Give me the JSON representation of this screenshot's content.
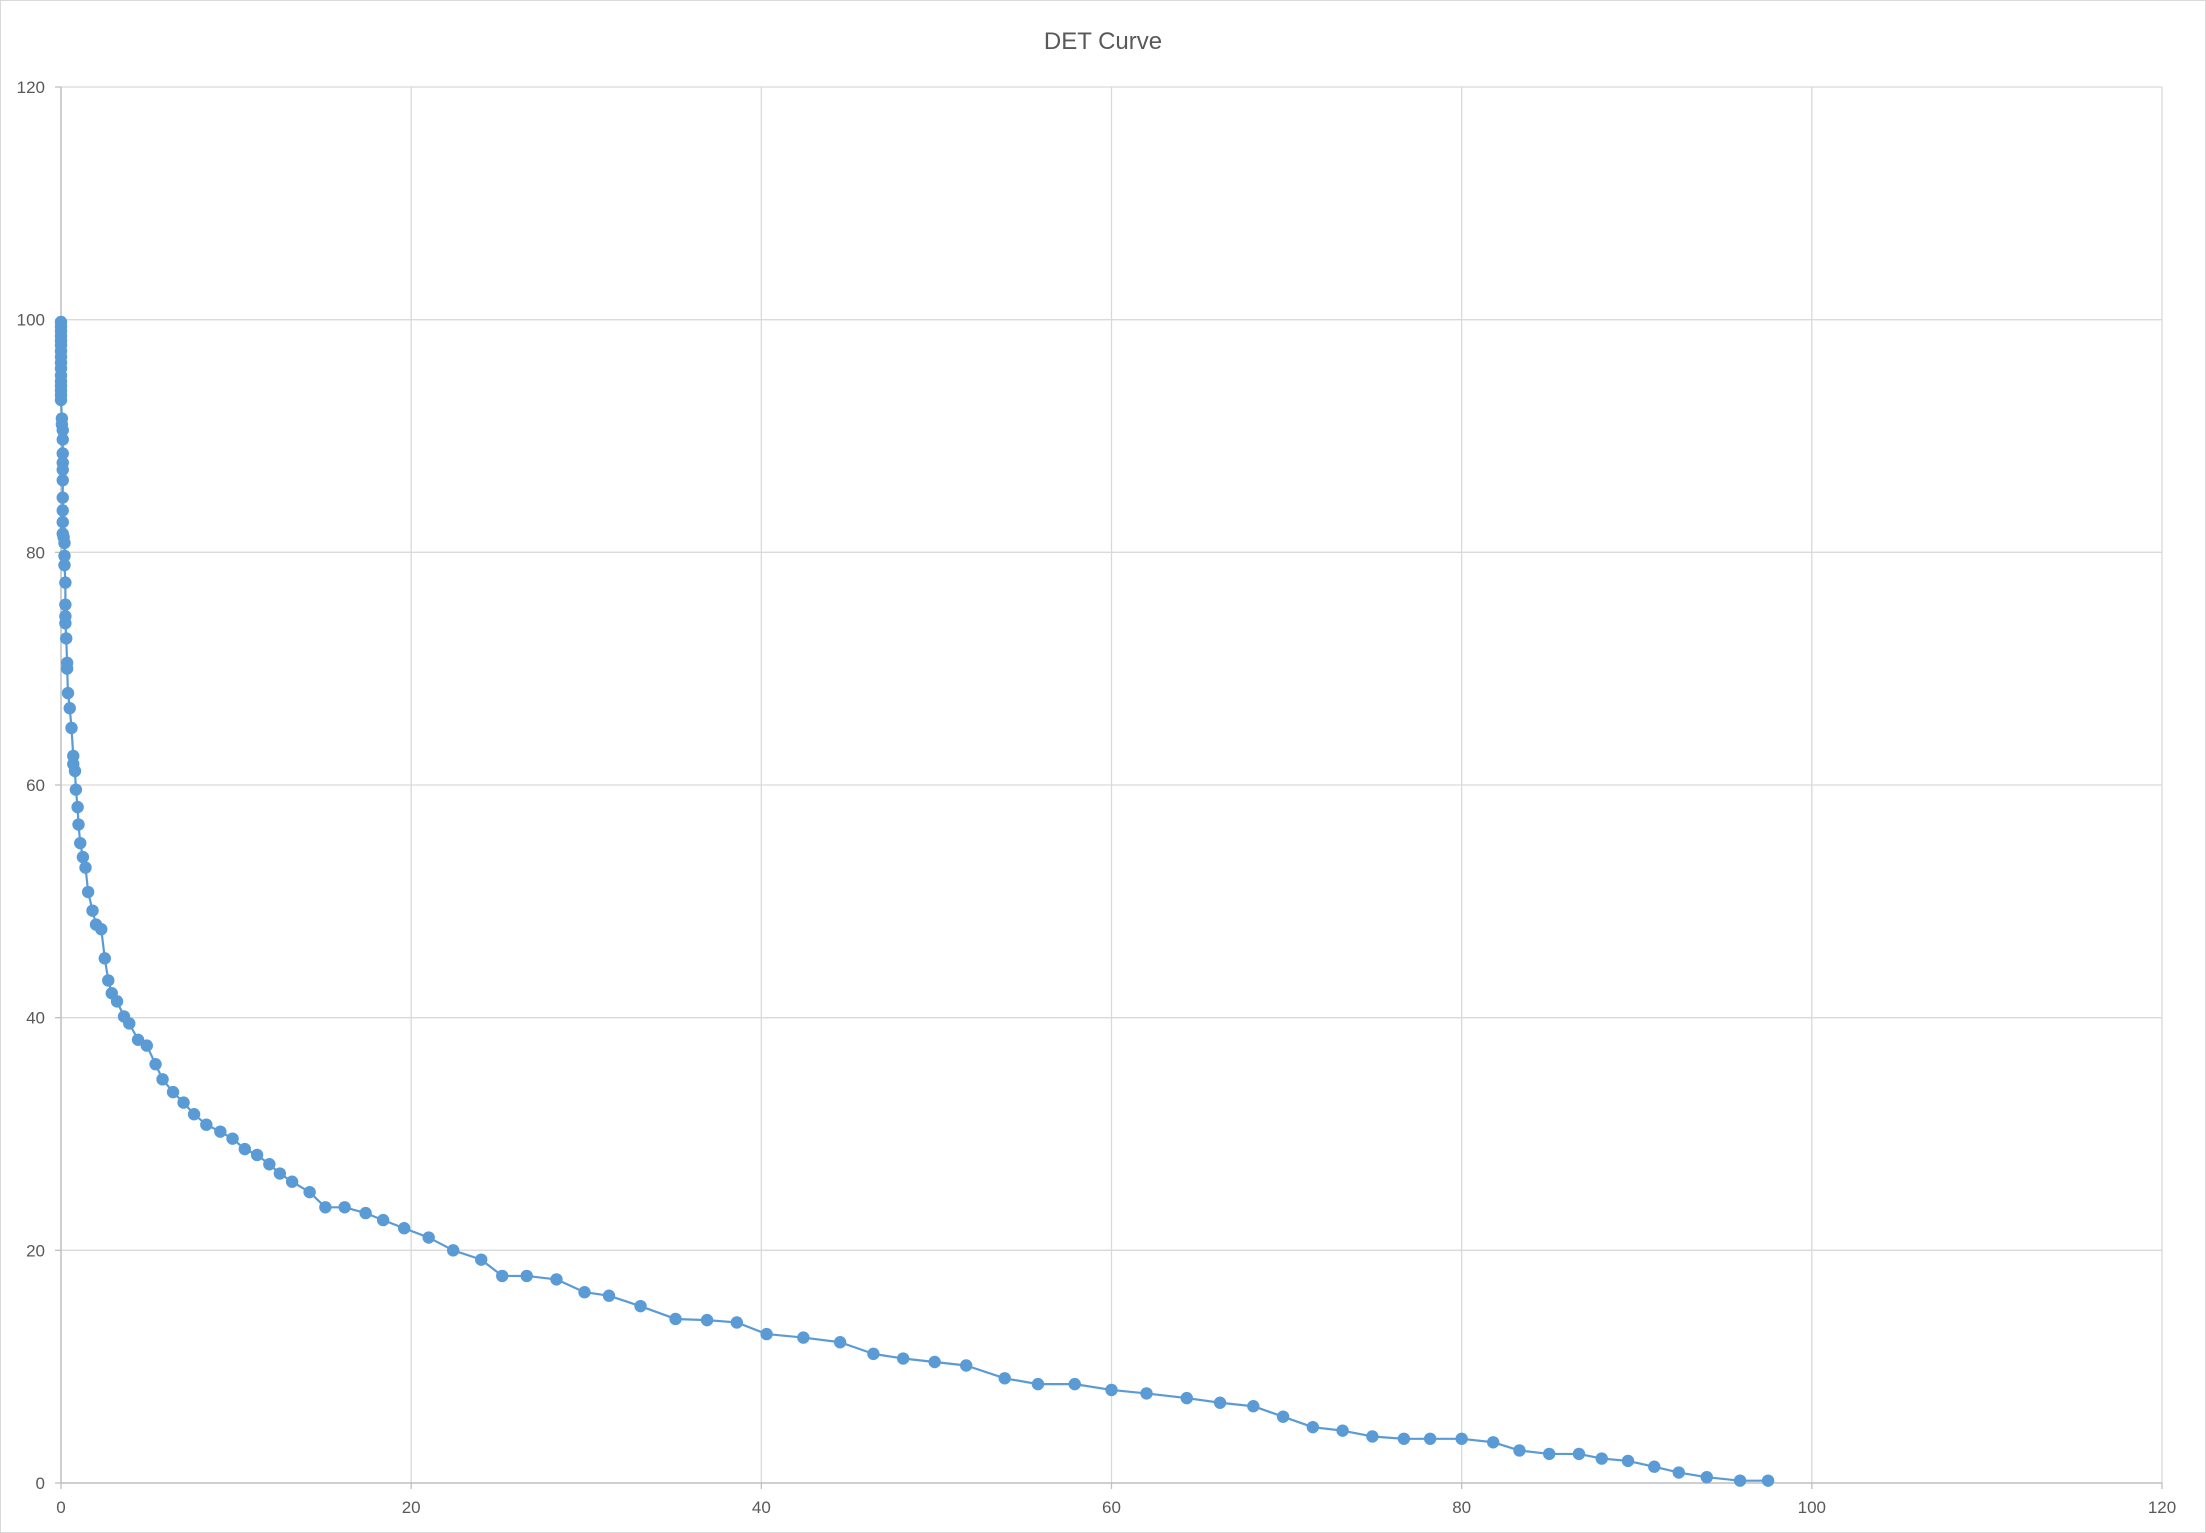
{
  "chart_data": {
    "type": "scatter",
    "title": "DET Curve",
    "xlabel": "",
    "ylabel": "",
    "xlim": [
      0,
      120
    ],
    "ylim": [
      0,
      120
    ],
    "x_ticks": [
      "0",
      "20",
      "40",
      "60",
      "80",
      "100",
      "120"
    ],
    "y_ticks": [
      "0",
      "20",
      "40",
      "60",
      "80",
      "100",
      "120"
    ],
    "grid": true,
    "legend": "none",
    "marker_color": "#5b9bd5",
    "line_color": "#5b9bd5",
    "grid_color": "#d9d9d9",
    "series": [
      {
        "points": [
          [
            0,
            99.8
          ],
          [
            0,
            99.4
          ],
          [
            0,
            99.0
          ],
          [
            0,
            98.6
          ],
          [
            0,
            98.2
          ],
          [
            0,
            97.8
          ],
          [
            0,
            97.3
          ],
          [
            0,
            96.8
          ],
          [
            0,
            96.3
          ],
          [
            0,
            95.8
          ],
          [
            0,
            95.2
          ],
          [
            0,
            94.7
          ],
          [
            0,
            94.3
          ],
          [
            0,
            93.9
          ],
          [
            0,
            93.5
          ],
          [
            0,
            93.1
          ],
          [
            0.05,
            91.5
          ],
          [
            0.05,
            91.0
          ],
          [
            0.1,
            90.5
          ],
          [
            0.1,
            89.7
          ],
          [
            0.1,
            88.5
          ],
          [
            0.1,
            87.7
          ],
          [
            0.1,
            87.1
          ],
          [
            0.1,
            86.2
          ],
          [
            0.1,
            84.7
          ],
          [
            0.1,
            83.6
          ],
          [
            0.1,
            82.6
          ],
          [
            0.1,
            81.6
          ],
          [
            0.15,
            81.3
          ],
          [
            0.2,
            80.8
          ],
          [
            0.2,
            79.7
          ],
          [
            0.2,
            78.9
          ],
          [
            0.25,
            77.4
          ],
          [
            0.25,
            75.5
          ],
          [
            0.25,
            74.5
          ],
          [
            0.25,
            73.9
          ],
          [
            0.3,
            72.6
          ],
          [
            0.35,
            70.5
          ],
          [
            0.35,
            70.0
          ],
          [
            0.4,
            67.9
          ],
          [
            0.5,
            66.6
          ],
          [
            0.6,
            64.9
          ],
          [
            0.7,
            62.5
          ],
          [
            0.7,
            61.8
          ],
          [
            0.8,
            61.2
          ],
          [
            0.85,
            59.6
          ],
          [
            0.95,
            58.1
          ],
          [
            1.0,
            56.6
          ],
          [
            1.1,
            55.0
          ],
          [
            1.25,
            53.8
          ],
          [
            1.4,
            52.9
          ],
          [
            1.55,
            50.8
          ],
          [
            1.8,
            49.2
          ],
          [
            2.0,
            48.0
          ],
          [
            2.3,
            47.6
          ],
          [
            2.5,
            45.1
          ],
          [
            2.7,
            43.2
          ],
          [
            2.9,
            42.1
          ],
          [
            3.2,
            41.4
          ],
          [
            3.6,
            40.1
          ],
          [
            3.9,
            39.5
          ],
          [
            4.4,
            38.1
          ],
          [
            4.9,
            37.6
          ],
          [
            5.4,
            36.0
          ],
          [
            5.8,
            34.7
          ],
          [
            6.4,
            33.6
          ],
          [
            7.0,
            32.7
          ],
          [
            7.6,
            31.7
          ],
          [
            8.3,
            30.8
          ],
          [
            9.1,
            30.2
          ],
          [
            9.8,
            29.6
          ],
          [
            10.5,
            28.7
          ],
          [
            11.2,
            28.2
          ],
          [
            11.9,
            27.4
          ],
          [
            12.5,
            26.6
          ],
          [
            13.2,
            25.9
          ],
          [
            14.2,
            25.0
          ],
          [
            15.1,
            23.7
          ],
          [
            16.2,
            23.7
          ],
          [
            17.4,
            23.2
          ],
          [
            18.4,
            22.6
          ],
          [
            19.6,
            21.9
          ],
          [
            21.0,
            21.1
          ],
          [
            22.4,
            20.0
          ],
          [
            24.0,
            19.2
          ],
          [
            25.2,
            17.8
          ],
          [
            26.6,
            17.8
          ],
          [
            28.3,
            17.5
          ],
          [
            29.9,
            16.4
          ],
          [
            31.3,
            16.1
          ],
          [
            33.1,
            15.2
          ],
          [
            35.1,
            14.1
          ],
          [
            36.9,
            14.0
          ],
          [
            38.6,
            13.8
          ],
          [
            40.3,
            12.8
          ],
          [
            42.4,
            12.5
          ],
          [
            44.5,
            12.1
          ],
          [
            46.4,
            11.1
          ],
          [
            48.1,
            10.7
          ],
          [
            49.9,
            10.4
          ],
          [
            51.7,
            10.1
          ],
          [
            53.9,
            9.0
          ],
          [
            55.8,
            8.5
          ],
          [
            57.9,
            8.5
          ],
          [
            60.0,
            8.0
          ],
          [
            62.0,
            7.7
          ],
          [
            64.3,
            7.3
          ],
          [
            66.2,
            6.9
          ],
          [
            68.1,
            6.6
          ],
          [
            69.8,
            5.7
          ],
          [
            71.5,
            4.8
          ],
          [
            73.2,
            4.5
          ],
          [
            74.9,
            4.0
          ],
          [
            76.7,
            3.8
          ],
          [
            78.2,
            3.8
          ],
          [
            80.0,
            3.8
          ],
          [
            81.8,
            3.5
          ],
          [
            83.3,
            2.8
          ],
          [
            85.0,
            2.5
          ],
          [
            86.7,
            2.5
          ],
          [
            88.0,
            2.1
          ],
          [
            89.5,
            1.9
          ],
          [
            91.0,
            1.4
          ],
          [
            92.4,
            0.9
          ],
          [
            94.0,
            0.5
          ],
          [
            95.9,
            0.2
          ],
          [
            97.5,
            0.2
          ]
        ]
      }
    ]
  }
}
